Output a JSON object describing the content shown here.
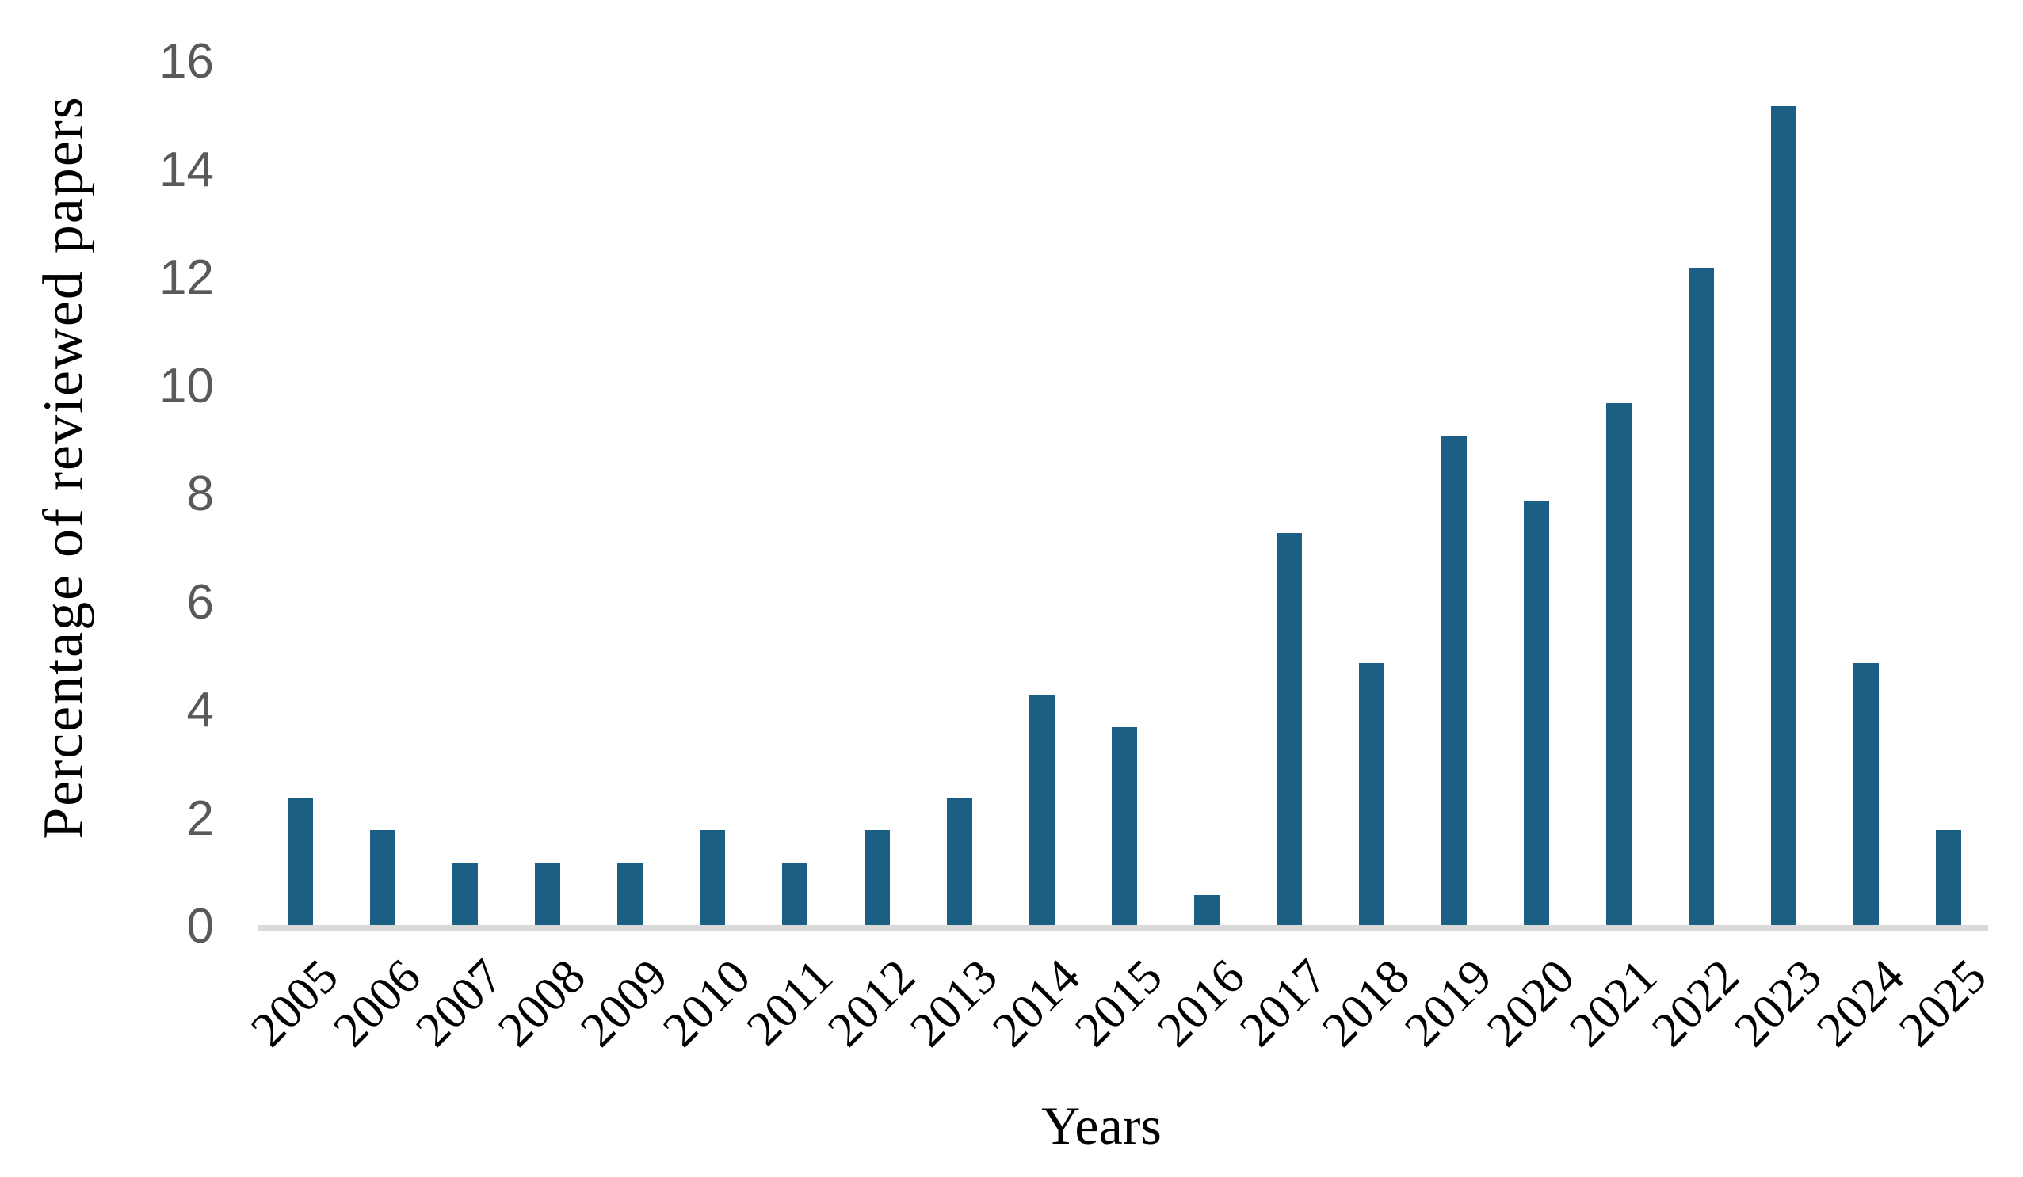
{
  "chart_data": {
    "type": "bar",
    "title": "",
    "xlabel": "Years",
    "ylabel": "Percentage of reviewed papers",
    "categories": [
      "2005",
      "2006",
      "2007",
      "2008",
      "2009",
      "2010",
      "2011",
      "2012",
      "2013",
      "2014",
      "2015",
      "2016",
      "2017",
      "2018",
      "2019",
      "2020",
      "2021",
      "2022",
      "2023",
      "2024",
      "2025"
    ],
    "values": [
      2.4,
      1.8,
      1.2,
      1.2,
      1.2,
      1.8,
      1.2,
      1.8,
      2.4,
      4.3,
      3.7,
      0.6,
      7.3,
      4.9,
      9.1,
      7.9,
      9.7,
      12.2,
      15.2,
      4.9,
      1.8
    ],
    "yticks": [
      0,
      2,
      4,
      6,
      8,
      10,
      12,
      14,
      16
    ],
    "ylim": [
      0,
      16
    ],
    "grid": false,
    "legend": null,
    "bar_color": "#1B5F85",
    "axis_line_color": "#D9D9D9",
    "tick_label_color": "#595959",
    "text_color": "#000000"
  }
}
